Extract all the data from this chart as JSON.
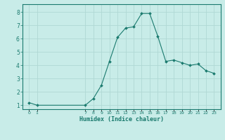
{
  "x": [
    0,
    1,
    7,
    8,
    9,
    10,
    11,
    12,
    13,
    14,
    15,
    16,
    17,
    18,
    19,
    20,
    21,
    22,
    23
  ],
  "y": [
    1.2,
    1.0,
    1.0,
    1.5,
    2.5,
    4.3,
    6.1,
    6.8,
    6.9,
    7.9,
    7.9,
    6.2,
    4.3,
    4.4,
    4.2,
    4.0,
    4.1,
    3.6,
    3.4
  ],
  "xlabel": "Humidex (Indice chaleur)",
  "line_color": "#1a7a6e",
  "marker_color": "#1a7a6e",
  "bg_color": "#c8ece8",
  "grid_color": "#b0d8d4",
  "ylim": [
    0.7,
    8.6
  ],
  "xlim": [
    -0.8,
    23.8
  ],
  "yticks": [
    1,
    2,
    3,
    4,
    5,
    6,
    7,
    8
  ],
  "xtick_positions": [
    0,
    1,
    7,
    8,
    9,
    10,
    11,
    12,
    13,
    14,
    15,
    16,
    17,
    18,
    19,
    20,
    21,
    22,
    23
  ],
  "xtick_labels": [
    "0",
    "1",
    "7",
    "8",
    "9",
    "10",
    "11",
    "12",
    "13",
    "14",
    "15",
    "16",
    "17",
    "18",
    "19",
    "20",
    "21",
    "22",
    "23"
  ]
}
